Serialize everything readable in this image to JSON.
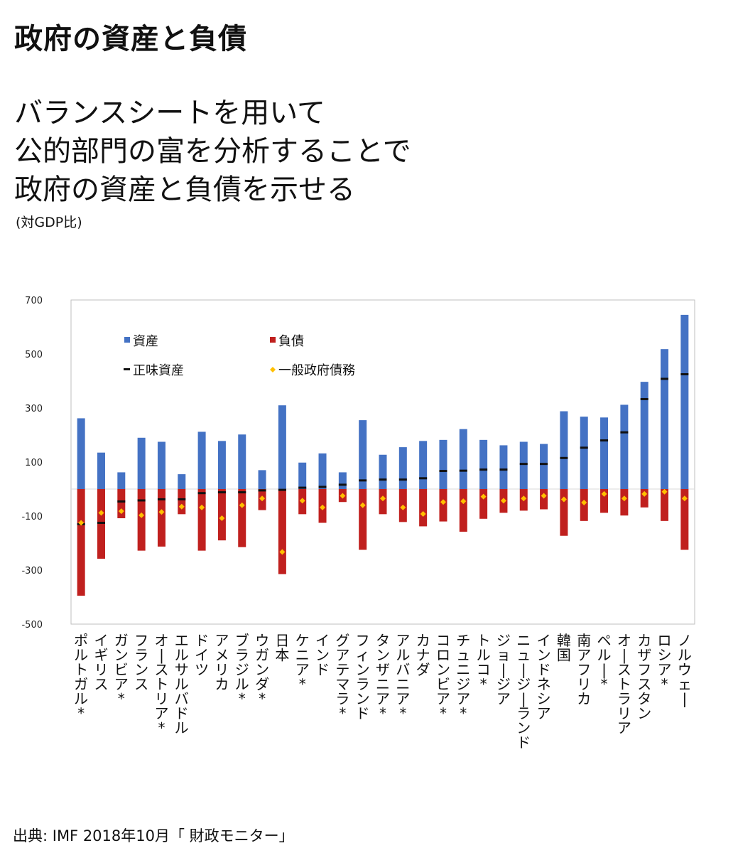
{
  "title": "政府の資産と負債",
  "subtitle_lines": [
    "バランスシートを用いて",
    "公的部門の富を分析することで",
    "政府の資産と負債を示せる"
  ],
  "unit": "(対GDP比)",
  "source": "出典: IMF  2018年10月「 財政モニター」",
  "colors": {
    "assets": "#4472c4",
    "liabilities": "#c0201e",
    "net_worth": "#111111",
    "gov_debt": "#ffc000"
  },
  "chart_data": {
    "type": "bar",
    "title": "",
    "xlabel": "",
    "ylabel": "",
    "ylim": [
      -500,
      700
    ],
    "yticks": [
      700,
      500,
      300,
      100,
      -100,
      -300,
      -500
    ],
    "grid": false,
    "legend": [
      {
        "key": "assets",
        "label": "資産",
        "marker": "square"
      },
      {
        "key": "liabilities",
        "label": "負債",
        "marker": "square"
      },
      {
        "key": "net_worth",
        "label": "正味資産",
        "marker": "dash"
      },
      {
        "key": "gov_debt",
        "label": "一般政府債務",
        "marker": "diamond"
      }
    ],
    "categories": [
      "ポルトガル*",
      "イギリス",
      "ガンビア*",
      "フランス",
      "オーストリア*",
      "エルサルバドル",
      "ドイツ",
      "アメリカ",
      "ブラジル*",
      "ウガンダ*",
      "日本",
      "ケニア*",
      "インド",
      "グアテマラ*",
      "フィンランド",
      "タンザニア*",
      "アルバニア*",
      "カナダ",
      "コロンビア*",
      "チュニジア*",
      "トルコ*",
      "ジョージア",
      "ニュージーランド",
      "インドネシア",
      "韓国",
      "南アフリカ",
      "ペルー*",
      "オーストラリア",
      "カザフスタン",
      "ロシア*",
      "ノルウェー"
    ],
    "series": [
      {
        "name": "資産",
        "key": "assets",
        "values": [
          262,
          135,
          62,
          190,
          175,
          55,
          212,
          178,
          202,
          70,
          310,
          98,
          132,
          62,
          255,
          127,
          155,
          178,
          182,
          222,
          182,
          162,
          175,
          167,
          288,
          268,
          265,
          312,
          397,
          518,
          645
        ]
      },
      {
        "name": "負債",
        "key": "liabilities",
        "values": [
          -395,
          -258,
          -108,
          -228,
          -213,
          -93,
          -228,
          -190,
          -215,
          -78,
          -315,
          -93,
          -125,
          -48,
          -225,
          -93,
          -122,
          -138,
          -120,
          -158,
          -110,
          -88,
          -80,
          -75,
          -173,
          -118,
          -88,
          -98,
          -68,
          -118,
          -225
        ]
      },
      {
        "name": "正味資産",
        "key": "net_worth",
        "values": [
          -130,
          -125,
          -46,
          -42,
          -38,
          -38,
          -15,
          -12,
          -12,
          -5,
          -3,
          5,
          8,
          16,
          32,
          35,
          35,
          40,
          67,
          68,
          72,
          72,
          93,
          93,
          115,
          153,
          180,
          210,
          333,
          408,
          425
        ]
      },
      {
        "name": "一般政府債務",
        "key": "gov_debt",
        "values": [
          -125,
          -88,
          -82,
          -97,
          -85,
          -65,
          -68,
          -108,
          -60,
          -35,
          -233,
          -43,
          -68,
          -25,
          -60,
          -35,
          -68,
          -92,
          -48,
          -45,
          -28,
          -43,
          -35,
          -25,
          -38,
          -50,
          -18,
          -35,
          -18,
          -10,
          -35
        ]
      }
    ]
  }
}
